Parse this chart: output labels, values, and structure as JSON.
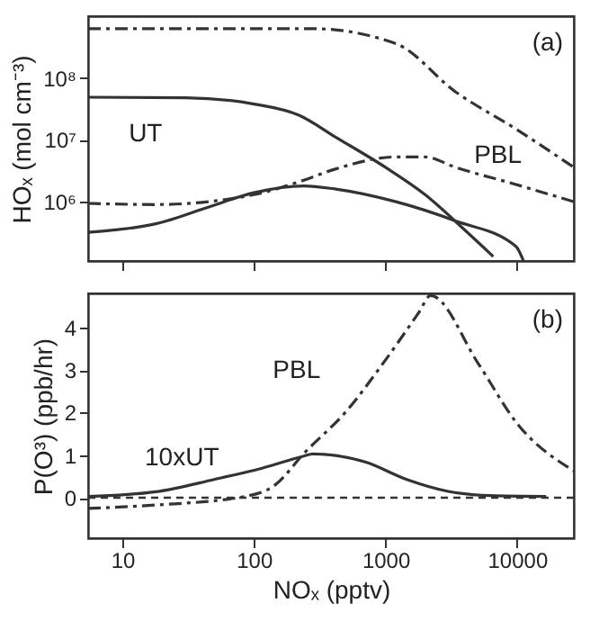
{
  "chart_data": [
    {
      "type": "line",
      "ylabel": "HOₓ (mol cm⁻³)",
      "annotations": [
        "(a)"
      ],
      "log": "xy",
      "grid": false,
      "tick_labels": "y",
      "xlim": [
        5.5,
        27000
      ],
      "xticks": [
        10,
        100,
        1000,
        10000
      ],
      "ylim": [
        110000,
        1000000000
      ],
      "yticks": [
        {
          "value": 1000000,
          "label": "10⁶"
        },
        {
          "value": 10000000,
          "label": "10⁷"
        },
        {
          "value": 100000000,
          "label": "10⁸"
        }
      ],
      "series": [
        {
          "name": "UT",
          "color": "#333333",
          "line_style": "solid",
          "x": [
            5.5,
            30,
            100,
            220,
            420,
            1000,
            2000,
            4000,
            6600
          ],
          "values": [
            49000000,
            48000000,
            38000000,
            25000000,
            11000000,
            3600000,
            1300000,
            350000,
            130000
          ]
        },
        {
          "color": "#333333",
          "line_style": "solid",
          "x": [
            5.5,
            18,
            46,
            100,
            240,
            420,
            1200,
            3400,
            9800,
            11200
          ],
          "values": [
            320000,
            440000,
            830000,
            1400000,
            1800000,
            1600000,
            1000000,
            490000,
            190000,
            110000
          ]
        },
        {
          "color": "#333333",
          "line_style": "dashed",
          "x": [
            5.5,
            30,
            100,
            275,
            1200,
            3400,
            9800,
            27000
          ],
          "values": [
            630000000,
            630000000,
            630000000,
            630000000,
            360000000,
            60000000,
            15000000,
            3600000
          ]
        },
        {
          "name": "PBL",
          "color": "#333333",
          "line_style": "dashed",
          "x": [
            5.5,
            18,
            100,
            220,
            420,
            1200,
            2000,
            3400,
            9800,
            27000
          ],
          "values": [
            940000,
            900000,
            1300000,
            2100000,
            3400000,
            5300000,
            5300000,
            3600000,
            1900000,
            1000000
          ]
        }
      ]
    },
    {
      "type": "line",
      "xlabel": "NOₓ (pptv)",
      "ylabel": "P(O³) (ppb/hr)",
      "annotations": [
        "(b)"
      ],
      "log": "x",
      "grid": false,
      "xlim": [
        5.5,
        27000
      ],
      "xticks": [
        10,
        100,
        1000,
        10000
      ],
      "ylim": [
        -0.95,
        4.8
      ],
      "yticks": [
        0,
        1,
        2,
        3,
        4
      ],
      "ref_lines": [
        {
          "axis": "y",
          "value": 0,
          "line_style": "dashed",
          "color": "#333333"
        }
      ],
      "series": [
        {
          "name": "10xUT",
          "color": "#333333",
          "line_style": "solid",
          "x": [
            5.5,
            18,
            50,
            117,
            240,
            280,
            700,
            1450,
            3000,
            6300,
            16600
          ],
          "values": [
            0.03,
            0.14,
            0.43,
            0.7,
            0.98,
            1.03,
            0.84,
            0.43,
            0.15,
            0.05,
            0.03
          ]
        },
        {
          "name": "PBL",
          "color": "#333333",
          "line_style": "dashed",
          "x": [
            5.5,
            18,
            85,
            145,
            240,
            510,
            950,
            1800,
            2200,
            5100,
            9800,
            27000
          ],
          "values": [
            -0.25,
            -0.17,
            0.03,
            0.3,
            1.04,
            2.05,
            3.14,
            4.36,
            4.75,
            3.14,
            1.78,
            0.63
          ]
        }
      ]
    }
  ]
}
